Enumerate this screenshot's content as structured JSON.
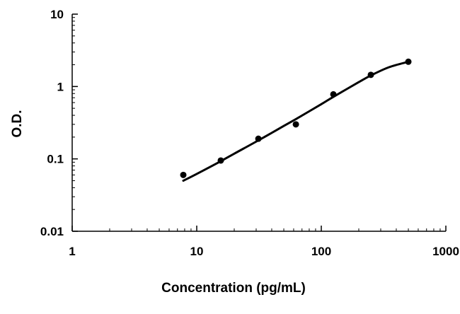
{
  "chart_data": {
    "type": "scatter",
    "title": "",
    "xlabel": "Concentration (pg/mL)",
    "ylabel": "O.D.",
    "x_scale": "log",
    "y_scale": "log",
    "xlim": [
      1,
      1000
    ],
    "ylim": [
      0.01,
      10
    ],
    "x_ticks": [
      1,
      10,
      100,
      1000
    ],
    "x_tick_labels": [
      "1",
      "10",
      "100",
      "1000"
    ],
    "y_ticks": [
      0.01,
      0.1,
      1,
      10
    ],
    "y_tick_labels": [
      "0.01",
      "0.1",
      "1",
      "10"
    ],
    "grid": false,
    "legend": false,
    "series": [
      {
        "kind": "points",
        "x": [
          7.8,
          15.6,
          31.25,
          62.5,
          125,
          250,
          500
        ],
        "y": [
          0.06,
          0.095,
          0.19,
          0.3,
          0.78,
          1.45,
          2.2
        ]
      },
      {
        "kind": "fit-curve",
        "x": [
          7.8,
          10,
          15.6,
          20,
          31.25,
          50,
          62.5,
          100,
          125,
          200,
          250,
          350,
          500
        ],
        "y": [
          0.05,
          0.062,
          0.093,
          0.118,
          0.18,
          0.285,
          0.355,
          0.57,
          0.72,
          1.15,
          1.42,
          1.85,
          2.2
        ]
      }
    ],
    "colors": {
      "axis": "#000000",
      "points": "#000000",
      "curve": "#000000"
    }
  }
}
